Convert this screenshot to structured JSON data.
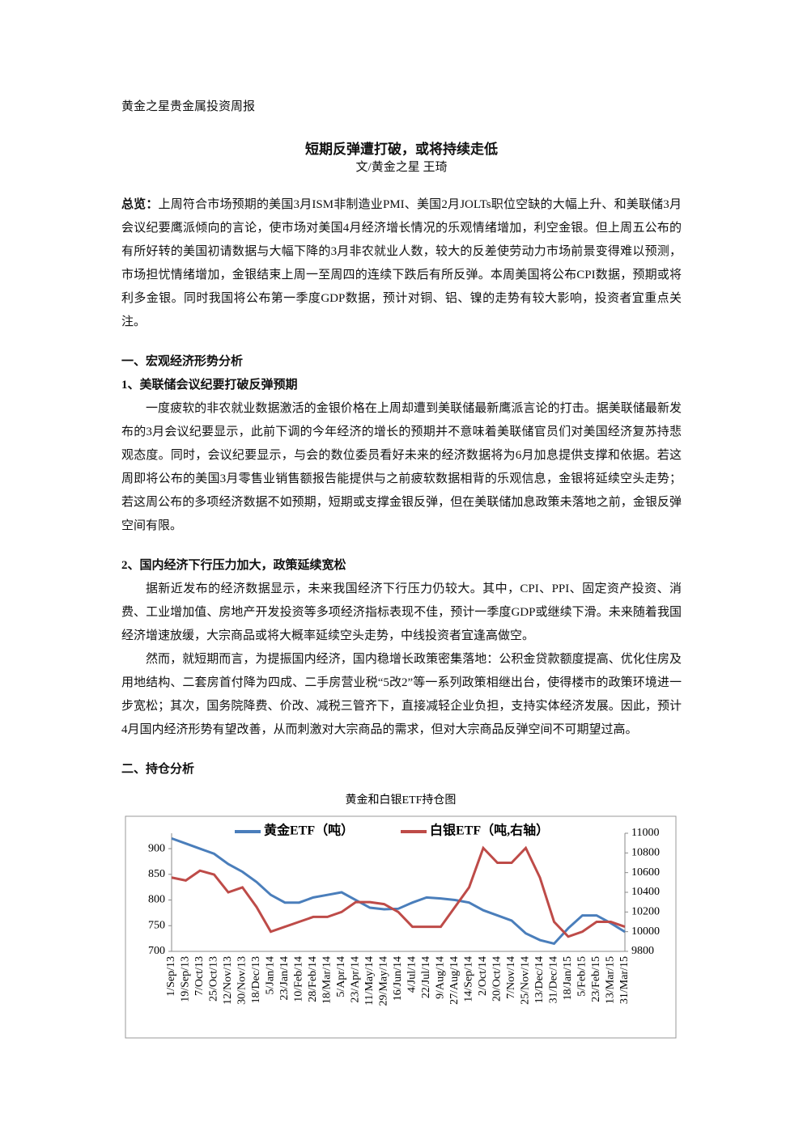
{
  "header": {
    "title": "黄金之星贵金属投资周报"
  },
  "article": {
    "title": "短期反弹遭打破，或将持续走低",
    "byline": "文/黄金之星 王琦",
    "overview": {
      "label": "总览：",
      "text": "上周符合市场预期的美国3月ISM非制造业PMI、美国2月JOLTs职位空缺的大幅上升、和美联储3月会议纪要鹰派倾向的言论，使市场对美国4月经济增长情况的乐观情绪增加，利空金银。但上周五公布的有所好转的美国初请数据与大幅下降的3月非农就业人数，较大的反差使劳动力市场前景变得难以预测，市场担忧情绪增加，金银结束上周一至周四的连续下跌后有所反弹。本周美国将公布CPI数据，预期或将利多金银。同时我国将公布第一季度GDP数据，预计对铜、铝、镍的走势有较大影响，投资者宜重点关注。"
    },
    "sections": [
      {
        "heading": "一、宏观经济形势分析",
        "subsections": [
          {
            "heading": "1、美联储会议纪要打破反弹预期",
            "paragraphs": [
              "一度疲软的非农就业数据激活的金银价格在上周却遭到美联储最新鹰派言论的打击。据美联储最新发布的3月会议纪要显示，此前下调的今年经济的增长的预期并不意味着美联储官员们对美国经济复苏持悲观态度。同时，会议纪要显示，与会的数位委员看好未来的经济数据将为6月加息提供支撑和依据。若这周即将公布的美国3月零售业销售额报告能提供与之前疲软数据相背的乐观信息，金银将延续空头走势；若这周公布的多项经济数据不如预期，短期或支撑金银反弹，但在美联储加息政策未落地之前，金银反弹空间有限。"
            ]
          },
          {
            "heading": "2、国内经济下行压力加大，政策延续宽松",
            "paragraphs": [
              "据新近发布的经济数据显示，未来我国经济下行压力仍较大。其中，CPI、PPI、固定资产投资、消费、工业增加值、房地产开发投资等多项经济指标表现不佳，预计一季度GDP或继续下滑。未来随着我国经济增速放缓，大宗商品或将大概率延续空头走势，中线投资者宜逢高做空。",
              "然而，就短期而言，为提振国内经济，国内稳增长政策密集落地：公积金贷款额度提高、优化住房及用地结构、二套房首付降为四成、二手房营业税“5改2”等一系列政策相继出台，使得楼市的政策环境进一步宽松；其次，国务院降费、价改、减税三管齐下，直接减轻企业负担，支持实体经济发展。因此，预计4月国内经济形势有望改善，从而刺激对大宗商品的需求，但对大宗商品反弹空间不可期望过高。"
            ]
          }
        ]
      },
      {
        "heading": "二、持仓分析"
      }
    ]
  },
  "chart_data": {
    "type": "line",
    "title": "黄金和白银ETF持仓图",
    "categories": [
      "1/Sep/13",
      "19/Sep/13",
      "7/Oct/13",
      "25/Oct/13",
      "12/Nov/13",
      "30/Nov/13",
      "18/Dec/13",
      "5/Jan/14",
      "23/Jan/14",
      "10/Feb/14",
      "28/Feb/14",
      "18/Mar/14",
      "5/Apr/14",
      "23/Apr/14",
      "11/May/14",
      "29/May/14",
      "16/Jun/14",
      "4/Jul/14",
      "22/Jul/14",
      "9/Aug/14",
      "27/Aug/14",
      "14/Sep/14",
      "2/Oct/14",
      "20/Oct/14",
      "7/Nov/14",
      "25/Nov/14",
      "13/Dec/14",
      "31/Dec/14",
      "18/Jan/15",
      "5/Feb/15",
      "23/Feb/15",
      "13/Mar/15",
      "31/Mar/15"
    ],
    "series": [
      {
        "name": "黄金ETF（吨）",
        "color": "#4a7ebb",
        "values": [
          920,
          910,
          900,
          890,
          870,
          855,
          835,
          810,
          795,
          795,
          805,
          810,
          815,
          800,
          785,
          782,
          783,
          795,
          805,
          803,
          800,
          795,
          780,
          770,
          760,
          735,
          722,
          715,
          745,
          770,
          770,
          755,
          738
        ]
      },
      {
        "name": "白银ETF（吨,右轴）",
        "color": "#be4b48",
        "axis": "y2",
        "values": [
          10550,
          10520,
          10620,
          10580,
          10400,
          10450,
          10250,
          10000,
          10050,
          10100,
          10150,
          10150,
          10200,
          10300,
          10300,
          10280,
          10200,
          10050,
          10050,
          10050,
          10250,
          10450,
          10850,
          10700,
          10700,
          10850,
          10550,
          10100,
          9950,
          10000,
          10100,
          10100,
          10050
        ]
      }
    ],
    "ylim": [
      700,
      930
    ],
    "yticks": [
      700,
      750,
      800,
      850,
      900
    ],
    "y2lim": [
      9800,
      11000
    ],
    "y2ticks": [
      9800,
      10000,
      10200,
      10400,
      10600,
      10800,
      11000
    ],
    "legend": "top"
  }
}
